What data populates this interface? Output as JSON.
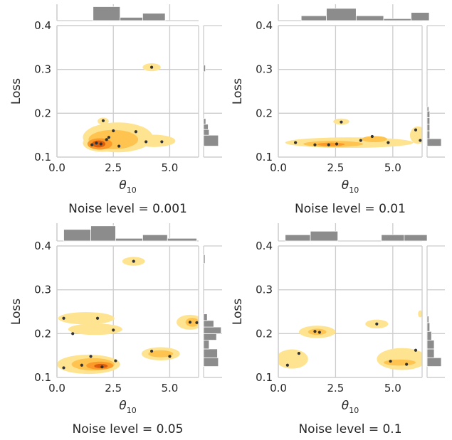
{
  "chart_data": [
    {
      "type": "scatter",
      "title": "Noise level = 0.001",
      "xlabel": "θ10",
      "ylabel": "Loss",
      "xlim": [
        0,
        6.28
      ],
      "ylim": [
        0.1,
        0.4
      ],
      "xticks": [
        "0.0",
        "2.5",
        "5.0"
      ],
      "yticks": [
        "0.1",
        "0.2",
        "0.3",
        "0.4"
      ],
      "grid": true,
      "points": [
        {
          "x": 1.55,
          "y": 0.128
        },
        {
          "x": 1.95,
          "y": 0.13
        },
        {
          "x": 2.2,
          "y": 0.14
        },
        {
          "x": 2.5,
          "y": 0.16
        },
        {
          "x": 2.3,
          "y": 0.145
        },
        {
          "x": 2.05,
          "y": 0.183
        },
        {
          "x": 2.75,
          "y": 0.125
        },
        {
          "x": 3.5,
          "y": 0.158
        },
        {
          "x": 3.95,
          "y": 0.135
        },
        {
          "x": 4.65,
          "y": 0.135
        },
        {
          "x": 4.2,
          "y": 0.305
        },
        {
          "x": 1.75,
          "y": 0.132
        }
      ],
      "density": [
        {
          "x": 2.0,
          "y": 0.132,
          "rx": 0.85,
          "ry": 0.02,
          "level": 0
        },
        {
          "x": 2.7,
          "y": 0.145,
          "rx": 1.55,
          "ry": 0.034,
          "level": 0
        },
        {
          "x": 4.3,
          "y": 0.137,
          "rx": 0.95,
          "ry": 0.014,
          "level": 0
        },
        {
          "x": 2.05,
          "y": 0.182,
          "rx": 0.25,
          "ry": 0.008,
          "level": 0
        },
        {
          "x": 4.2,
          "y": 0.305,
          "rx": 0.4,
          "ry": 0.009,
          "level": 0
        },
        {
          "x": 2.5,
          "y": 0.14,
          "rx": 1.1,
          "ry": 0.022,
          "level": 1
        },
        {
          "x": 1.9,
          "y": 0.13,
          "rx": 0.55,
          "ry": 0.013,
          "level": 2
        },
        {
          "x": 1.85,
          "y": 0.13,
          "rx": 0.3,
          "ry": 0.008,
          "level": 3
        }
      ],
      "marginal_x": {
        "bins": [
          [
            1.6,
            2.8,
            0.85
          ],
          [
            2.8,
            3.8,
            0.2
          ],
          [
            3.8,
            4.8,
            0.45
          ]
        ]
      },
      "marginal_y": {
        "bins": [
          [
            0.125,
            0.15,
            0.8
          ],
          [
            0.15,
            0.163,
            0.3
          ],
          [
            0.163,
            0.175,
            0.25
          ],
          [
            0.175,
            0.188,
            0.12
          ],
          [
            0.295,
            0.31,
            0.1
          ]
        ]
      }
    },
    {
      "type": "scatter",
      "title": "Noise level = 0.01",
      "xlabel": "θ10",
      "ylabel": "Loss",
      "xlim": [
        0,
        6.28
      ],
      "ylim": [
        0.1,
        0.4
      ],
      "xticks": [
        "0.0",
        "2.5",
        "5.0"
      ],
      "yticks": [
        "0.1",
        "0.2",
        "0.3",
        "0.4"
      ],
      "grid": true,
      "points": [
        {
          "x": 0.75,
          "y": 0.133
        },
        {
          "x": 1.6,
          "y": 0.128
        },
        {
          "x": 2.2,
          "y": 0.128
        },
        {
          "x": 2.55,
          "y": 0.13
        },
        {
          "x": 2.75,
          "y": 0.18
        },
        {
          "x": 3.6,
          "y": 0.138
        },
        {
          "x": 4.1,
          "y": 0.147
        },
        {
          "x": 4.8,
          "y": 0.133
        },
        {
          "x": 6.0,
          "y": 0.162
        },
        {
          "x": 6.2,
          "y": 0.138
        }
      ],
      "density": [
        {
          "x": 3.1,
          "y": 0.133,
          "rx": 2.8,
          "ry": 0.012,
          "level": 0
        },
        {
          "x": 2.75,
          "y": 0.181,
          "rx": 0.35,
          "ry": 0.007,
          "level": 0
        },
        {
          "x": 6.1,
          "y": 0.15,
          "rx": 0.35,
          "ry": 0.02,
          "level": 0
        },
        {
          "x": 2.4,
          "y": 0.13,
          "rx": 1.3,
          "ry": 0.007,
          "level": 1
        },
        {
          "x": 4.2,
          "y": 0.141,
          "rx": 0.55,
          "ry": 0.007,
          "level": 1
        },
        {
          "x": 2.3,
          "y": 0.129,
          "rx": 0.6,
          "ry": 0.004,
          "level": 2
        }
      ],
      "marginal_x": {
        "bins": [
          [
            1.0,
            2.1,
            0.3
          ],
          [
            2.1,
            3.4,
            0.75
          ],
          [
            3.4,
            4.6,
            0.3
          ],
          [
            4.6,
            5.8,
            0.12
          ],
          [
            5.8,
            6.8,
            0.5
          ]
        ]
      },
      "marginal_y": {
        "bins": [
          [
            0.125,
            0.142,
            0.8
          ],
          [
            0.142,
            0.16,
            0.15
          ],
          [
            0.16,
            0.175,
            0.15
          ],
          [
            0.175,
            0.19,
            0.15
          ],
          [
            0.19,
            0.205,
            0.15
          ],
          [
            0.205,
            0.215,
            0.1
          ]
        ]
      }
    },
    {
      "type": "scatter",
      "title": "Noise level = 0.05",
      "xlabel": "θ10",
      "ylabel": "Loss",
      "xlim": [
        0,
        6.28
      ],
      "ylim": [
        0.1,
        0.4
      ],
      "xticks": [
        "0.0",
        "2.5",
        "5.0"
      ],
      "yticks": [
        "0.1",
        "0.2",
        "0.3",
        "0.4"
      ],
      "grid": true,
      "points": [
        {
          "x": 0.3,
          "y": 0.122
        },
        {
          "x": 1.1,
          "y": 0.128
        },
        {
          "x": 1.5,
          "y": 0.148
        },
        {
          "x": 2.0,
          "y": 0.124
        },
        {
          "x": 2.6,
          "y": 0.138
        },
        {
          "x": 0.3,
          "y": 0.235
        },
        {
          "x": 1.8,
          "y": 0.235
        },
        {
          "x": 2.5,
          "y": 0.208
        },
        {
          "x": 0.7,
          "y": 0.2
        },
        {
          "x": 3.4,
          "y": 0.365
        },
        {
          "x": 4.2,
          "y": 0.16
        },
        {
          "x": 5.0,
          "y": 0.148
        },
        {
          "x": 5.9,
          "y": 0.226
        },
        {
          "x": 6.2,
          "y": 0.225
        }
      ],
      "density": [
        {
          "x": 1.4,
          "y": 0.13,
          "rx": 1.4,
          "ry": 0.022,
          "level": 0
        },
        {
          "x": 4.6,
          "y": 0.154,
          "rx": 0.85,
          "ry": 0.015,
          "level": 0
        },
        {
          "x": 1.3,
          "y": 0.235,
          "rx": 1.25,
          "ry": 0.014,
          "level": 0
        },
        {
          "x": 1.7,
          "y": 0.21,
          "rx": 1.2,
          "ry": 0.013,
          "level": 0
        },
        {
          "x": 3.4,
          "y": 0.365,
          "rx": 0.5,
          "ry": 0.01,
          "level": 0
        },
        {
          "x": 5.9,
          "y": 0.226,
          "rx": 0.6,
          "ry": 0.017,
          "level": 0
        },
        {
          "x": 1.6,
          "y": 0.13,
          "rx": 0.95,
          "ry": 0.014,
          "level": 1
        },
        {
          "x": 4.6,
          "y": 0.154,
          "rx": 0.55,
          "ry": 0.008,
          "level": 1
        },
        {
          "x": 6.0,
          "y": 0.226,
          "rx": 0.3,
          "ry": 0.01,
          "level": 1
        },
        {
          "x": 1.9,
          "y": 0.127,
          "rx": 0.6,
          "ry": 0.009,
          "level": 2
        },
        {
          "x": 1.95,
          "y": 0.126,
          "rx": 0.3,
          "ry": 0.005,
          "level": 3
        }
      ],
      "marginal_x": {
        "bins": [
          [
            0.3,
            1.5,
            0.65
          ],
          [
            1.5,
            2.6,
            0.85
          ],
          [
            2.6,
            3.8,
            0.15
          ],
          [
            3.8,
            4.9,
            0.35
          ],
          [
            4.9,
            6.2,
            0.15
          ]
        ]
      },
      "marginal_y": {
        "bins": [
          [
            0.125,
            0.145,
            0.8
          ],
          [
            0.145,
            0.165,
            0.75
          ],
          [
            0.165,
            0.185,
            0.3
          ],
          [
            0.185,
            0.2,
            0.7
          ],
          [
            0.2,
            0.215,
            0.95
          ],
          [
            0.215,
            0.23,
            0.55
          ],
          [
            0.23,
            0.245,
            0.2
          ],
          [
            0.36,
            0.38,
            0.08
          ]
        ]
      }
    },
    {
      "type": "scatter",
      "title": "Noise level = 0.1",
      "xlabel": "θ10",
      "ylabel": "Loss",
      "xlim": [
        0,
        6.28
      ],
      "ylim": [
        0.1,
        0.4
      ],
      "xticks": [
        "0.0",
        "2.5",
        "5.0"
      ],
      "yticks": [
        "0.1",
        "0.2",
        "0.3",
        "0.4"
      ],
      "grid": true,
      "points": [
        {
          "x": 0.4,
          "y": 0.128
        },
        {
          "x": 0.9,
          "y": 0.155
        },
        {
          "x": 1.6,
          "y": 0.205
        },
        {
          "x": 1.8,
          "y": 0.203
        },
        {
          "x": 4.3,
          "y": 0.222
        },
        {
          "x": 4.9,
          "y": 0.137
        },
        {
          "x": 5.6,
          "y": 0.13
        },
        {
          "x": 6.0,
          "y": 0.162
        }
      ],
      "density": [
        {
          "x": 0.6,
          "y": 0.142,
          "rx": 0.7,
          "ry": 0.022,
          "level": 0
        },
        {
          "x": 1.7,
          "y": 0.204,
          "rx": 0.8,
          "ry": 0.014,
          "level": 0
        },
        {
          "x": 4.3,
          "y": 0.222,
          "rx": 0.5,
          "ry": 0.01,
          "level": 0
        },
        {
          "x": 5.4,
          "y": 0.142,
          "rx": 1.1,
          "ry": 0.025,
          "level": 0
        },
        {
          "x": 6.2,
          "y": 0.245,
          "rx": 0.1,
          "ry": 0.008,
          "level": 0
        },
        {
          "x": 1.7,
          "y": 0.204,
          "rx": 0.4,
          "ry": 0.007,
          "level": 1
        },
        {
          "x": 5.3,
          "y": 0.134,
          "rx": 0.7,
          "ry": 0.007,
          "level": 1
        }
      ],
      "marginal_x": {
        "bins": [
          [
            0.3,
            1.4,
            0.35
          ],
          [
            1.4,
            2.6,
            0.55
          ],
          [
            4.5,
            5.5,
            0.35
          ],
          [
            5.5,
            6.5,
            0.35
          ]
        ]
      },
      "marginal_y": {
        "bins": [
          [
            0.125,
            0.145,
            0.8
          ],
          [
            0.145,
            0.165,
            0.4
          ],
          [
            0.165,
            0.185,
            0.4
          ],
          [
            0.185,
            0.205,
            0.25
          ],
          [
            0.205,
            0.225,
            0.15
          ],
          [
            0.225,
            0.24,
            0.1
          ]
        ]
      }
    }
  ]
}
